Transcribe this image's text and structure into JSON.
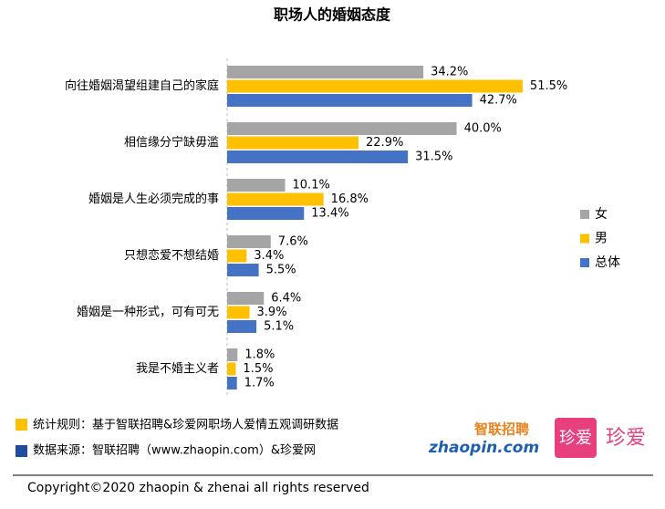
{
  "chart_data": {
    "type": "bar",
    "orientation": "horizontal",
    "title": "职场人的婚姻态度",
    "categories": [
      "向往婚姻渴望组建自己的家庭",
      "相信缘分宁缺毋滥",
      "婚姻是人生必须完成的事",
      "只想恋爱不想结婚",
      "婚姻是一种形式，可有可无",
      "我是不婚主义者"
    ],
    "series": [
      {
        "name": "女",
        "color": "#a5a5a5",
        "values": [
          34.2,
          40.0,
          10.1,
          7.6,
          6.4,
          1.8
        ],
        "value_labels": [
          "34.2%",
          "40.0%",
          "10.1%",
          "7.6%",
          "6.4%",
          "1.8%"
        ]
      },
      {
        "name": "男",
        "color": "#ffc000",
        "values": [
          51.5,
          22.9,
          16.8,
          3.4,
          3.9,
          1.5
        ],
        "value_labels": [
          "51.5%",
          "22.9%",
          "16.8%",
          "3.4%",
          "3.9%",
          "1.5%"
        ]
      },
      {
        "name": "总体",
        "color": "#4472c4",
        "values": [
          42.7,
          31.5,
          13.4,
          5.5,
          5.1,
          1.7
        ],
        "value_labels": [
          "42.7%",
          "31.5%",
          "13.4%",
          "5.5%",
          "5.1%",
          "1.7%"
        ]
      }
    ],
    "legend": "right"
  },
  "footer": {
    "rule": "统计规则：基于智联招聘&珍爱网职场人爱情五观调研数据",
    "source": "数据来源：智联招聘（www.zhaopin.com）&珍爱网",
    "copyright": "Copyright©2020 zhaopin & zhenai  all rights reserved",
    "logos": [
      "智联招聘",
      "zhaopin.com",
      "珍爱",
      "珍爱"
    ]
  }
}
